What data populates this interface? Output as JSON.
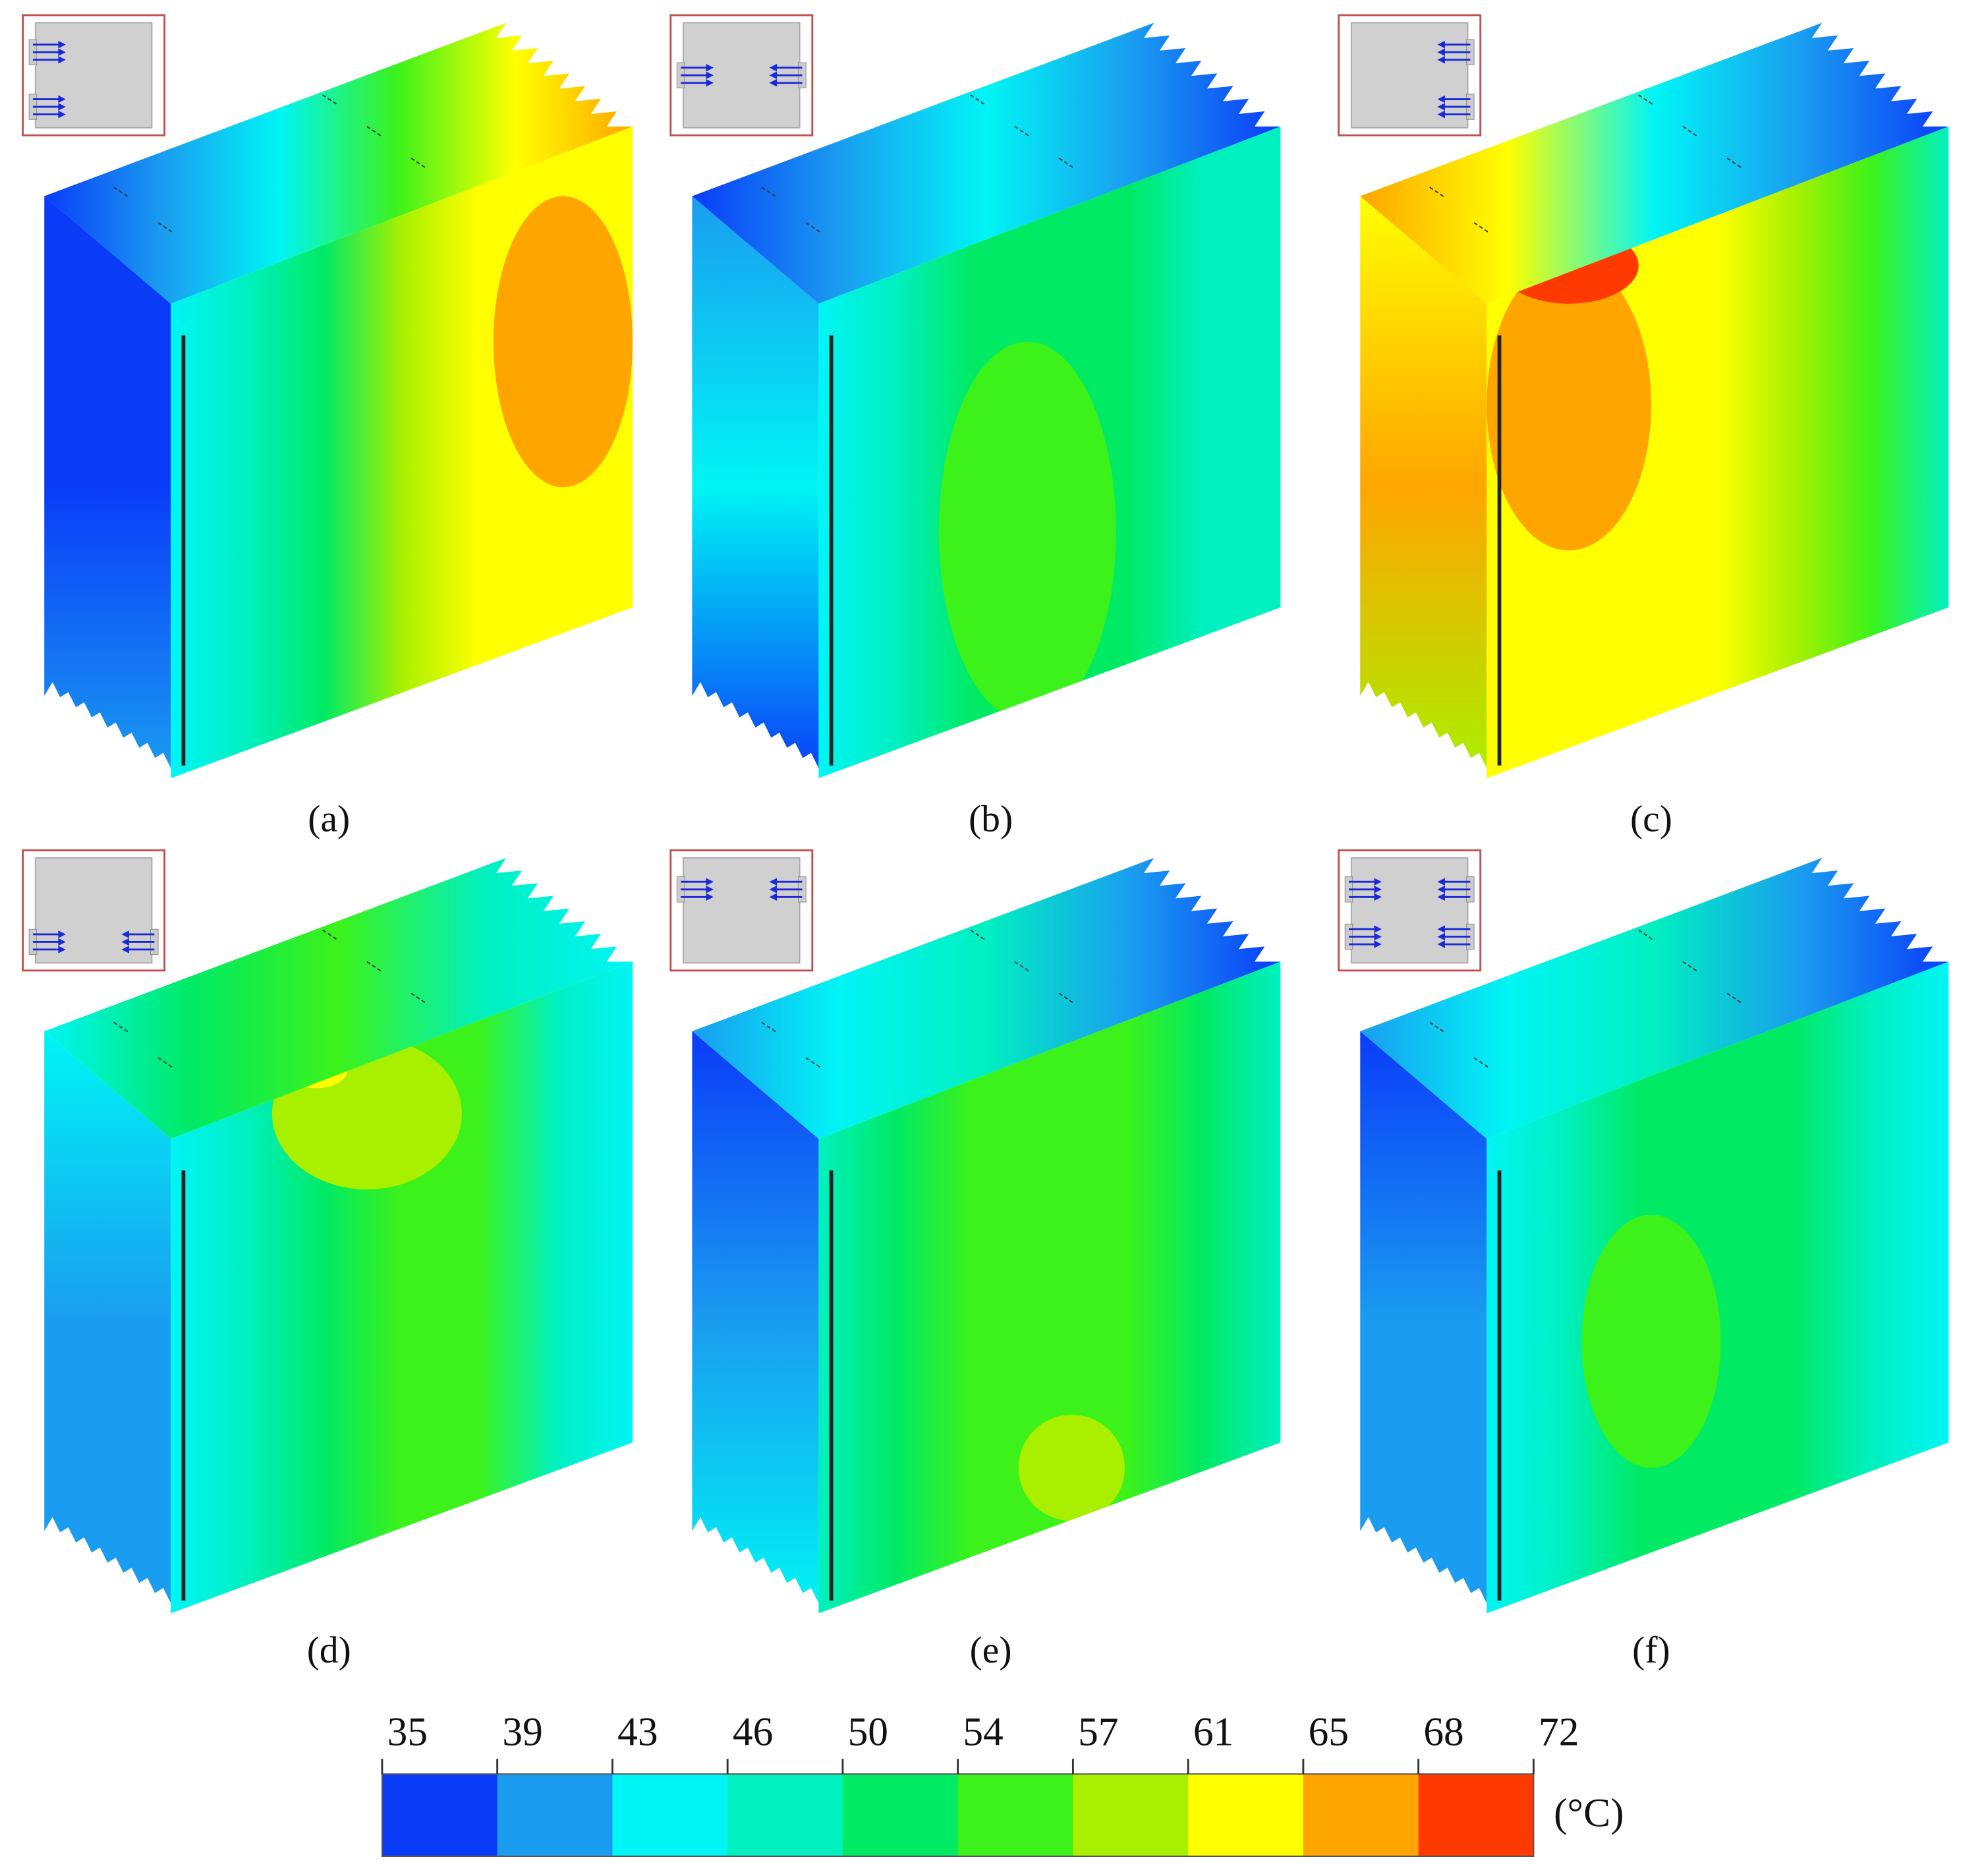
{
  "panels": [
    {
      "label": "(a)"
    },
    {
      "label": "(b)"
    },
    {
      "label": "(c)"
    },
    {
      "label": "(d)"
    },
    {
      "label": "(e)"
    },
    {
      "label": "(f)"
    }
  ],
  "colorbar": {
    "ticks": [
      35,
      39,
      43,
      46,
      50,
      54,
      57,
      61,
      65,
      68,
      72
    ],
    "colors": [
      "#0a3cf8",
      "#1a9cf0",
      "#00f5f5",
      "#00f0c0",
      "#00ea64",
      "#3cf21a",
      "#a8f000",
      "#ffff00",
      "#ffa500",
      "#ff3a00"
    ],
    "unit": "(°C)"
  }
}
